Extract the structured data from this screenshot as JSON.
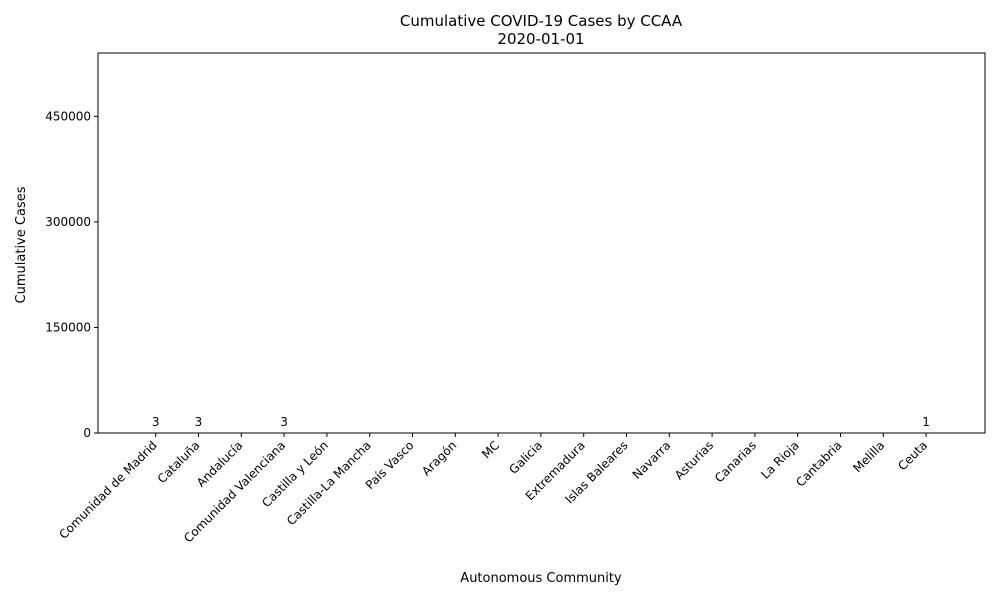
{
  "chart_data": {
    "type": "bar",
    "title": "Cumulative COVID-19 Cases by CCAA",
    "subtitle": "2020-01-01",
    "xlabel": "Autonomous Community",
    "ylabel": "Cumulative Cases",
    "ylim": [
      0,
      540000
    ],
    "yticks": [
      0,
      150000,
      300000,
      450000
    ],
    "grid": false,
    "categories": [
      "Comunidad de Madrid",
      "Cataluña",
      "Andalucía",
      "Comunidad Valenciana",
      "Castilla y León",
      "Castilla-La Mancha",
      "País Vasco",
      "Aragón",
      "MC",
      "Galicia",
      "Extremadura",
      "Islas Baleares",
      "Navarra",
      "Asturias",
      "Canarias",
      "La Rioja",
      "Cantabria",
      "Melilla",
      "Ceuta"
    ],
    "values": [
      3,
      3,
      0,
      3,
      0,
      0,
      0,
      0,
      0,
      0,
      0,
      0,
      0,
      0,
      0,
      0,
      0,
      0,
      1
    ],
    "data_labels": [
      "3",
      "3",
      "",
      "3",
      "",
      "",
      "",
      "",
      "",
      "",
      "",
      "",
      "",
      "",
      "",
      "",
      "",
      "",
      "1"
    ],
    "colors": {
      "bar": "#1f77b4",
      "axis": "#000000",
      "background": "#ffffff"
    }
  }
}
